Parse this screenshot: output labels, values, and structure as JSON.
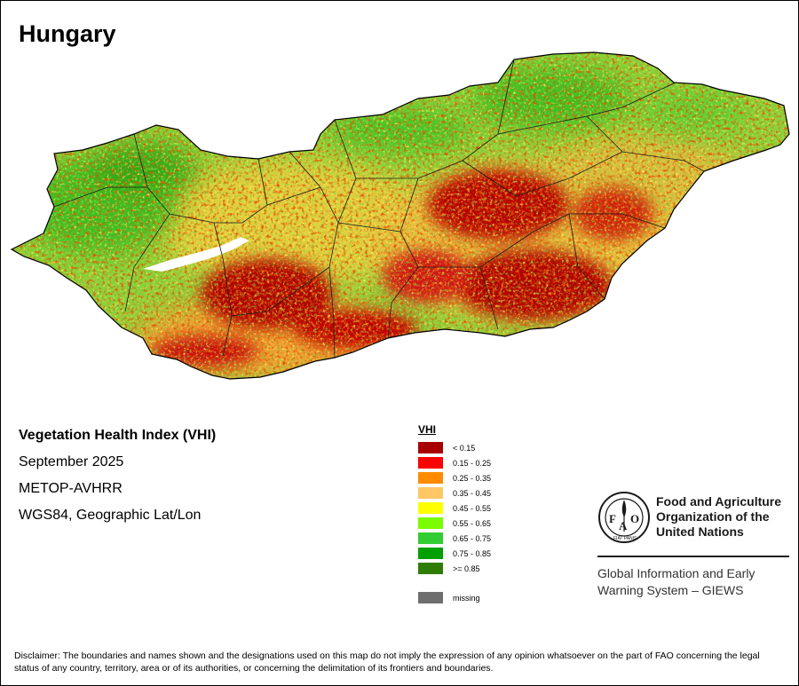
{
  "map": {
    "title": "Hungary",
    "country": "Hungary"
  },
  "info": {
    "product": "Vegetation Health Index (VHI)",
    "date": "September 2025",
    "sensor": "METOP-AVHRR",
    "projection": "WGS84, Geographic Lat/Lon"
  },
  "legend": {
    "title": "VHI",
    "classes": [
      {
        "label": "< 0.15",
        "color": "#a80000"
      },
      {
        "label": "0.15 - 0.25",
        "color": "#ff0000"
      },
      {
        "label": "0.25 - 0.35",
        "color": "#ff8c00"
      },
      {
        "label": "0.35 - 0.45",
        "color": "#ffc864"
      },
      {
        "label": "0.45 - 0.55",
        "color": "#ffff00"
      },
      {
        "label": "0.55 - 0.65",
        "color": "#7cfc00"
      },
      {
        "label": "0.65 - 0.75",
        "color": "#32cd32"
      },
      {
        "label": "0.75 - 0.85",
        "color": "#00a000"
      },
      {
        "label": ">= 0.85",
        "color": "#2e7d00"
      }
    ],
    "missing": {
      "label": "missing",
      "color": "#6e6e6e"
    }
  },
  "organization": {
    "name": "Food and Agriculture Organization of the United Nations",
    "program": "Global Information and Early Warning System – GIEWS",
    "logo_letters": "FAO",
    "logo_motto": "FIAT PANIS"
  },
  "disclaimer": "Disclaimer: The boundaries and names shown and the designations used on this map do not imply the expression of any opinion whatsoever on the part of FAO concerning the legal status of any country, territory, area or of its authorities, or concerning the delimitation of its frontiers and boundaries."
}
